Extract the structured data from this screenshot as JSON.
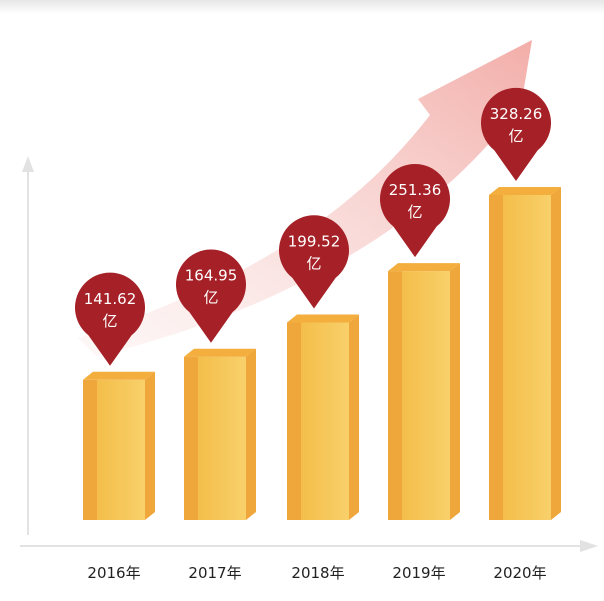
{
  "chart_data": {
    "type": "bar",
    "title": "",
    "xlabel": "",
    "ylabel": "",
    "categories": [
      "2016年",
      "2017年",
      "2018年",
      "2019年",
      "2020年"
    ],
    "series": [
      {
        "values": [
          141.62,
          164.95,
          199.52,
          251.36,
          328.26
        ],
        "value_labels": [
          "141.62",
          "164.95",
          "199.52",
          "251.36",
          "328.26"
        ]
      }
    ],
    "unit": "亿",
    "ylim": [
      0,
      400
    ],
    "grid": false,
    "legend": "none",
    "style": "3d-bar",
    "annotations": "trend-arrow-up"
  },
  "colors": {
    "bar_front": "#F7C95A",
    "bar_side": "#EFA63A",
    "bar_top": "#F3AE3E",
    "pin": "#A52127",
    "pin_text": "#ffffff",
    "arrow": "#F4B5B1",
    "axis": "#E2E2E2",
    "label_text": "#222222"
  }
}
